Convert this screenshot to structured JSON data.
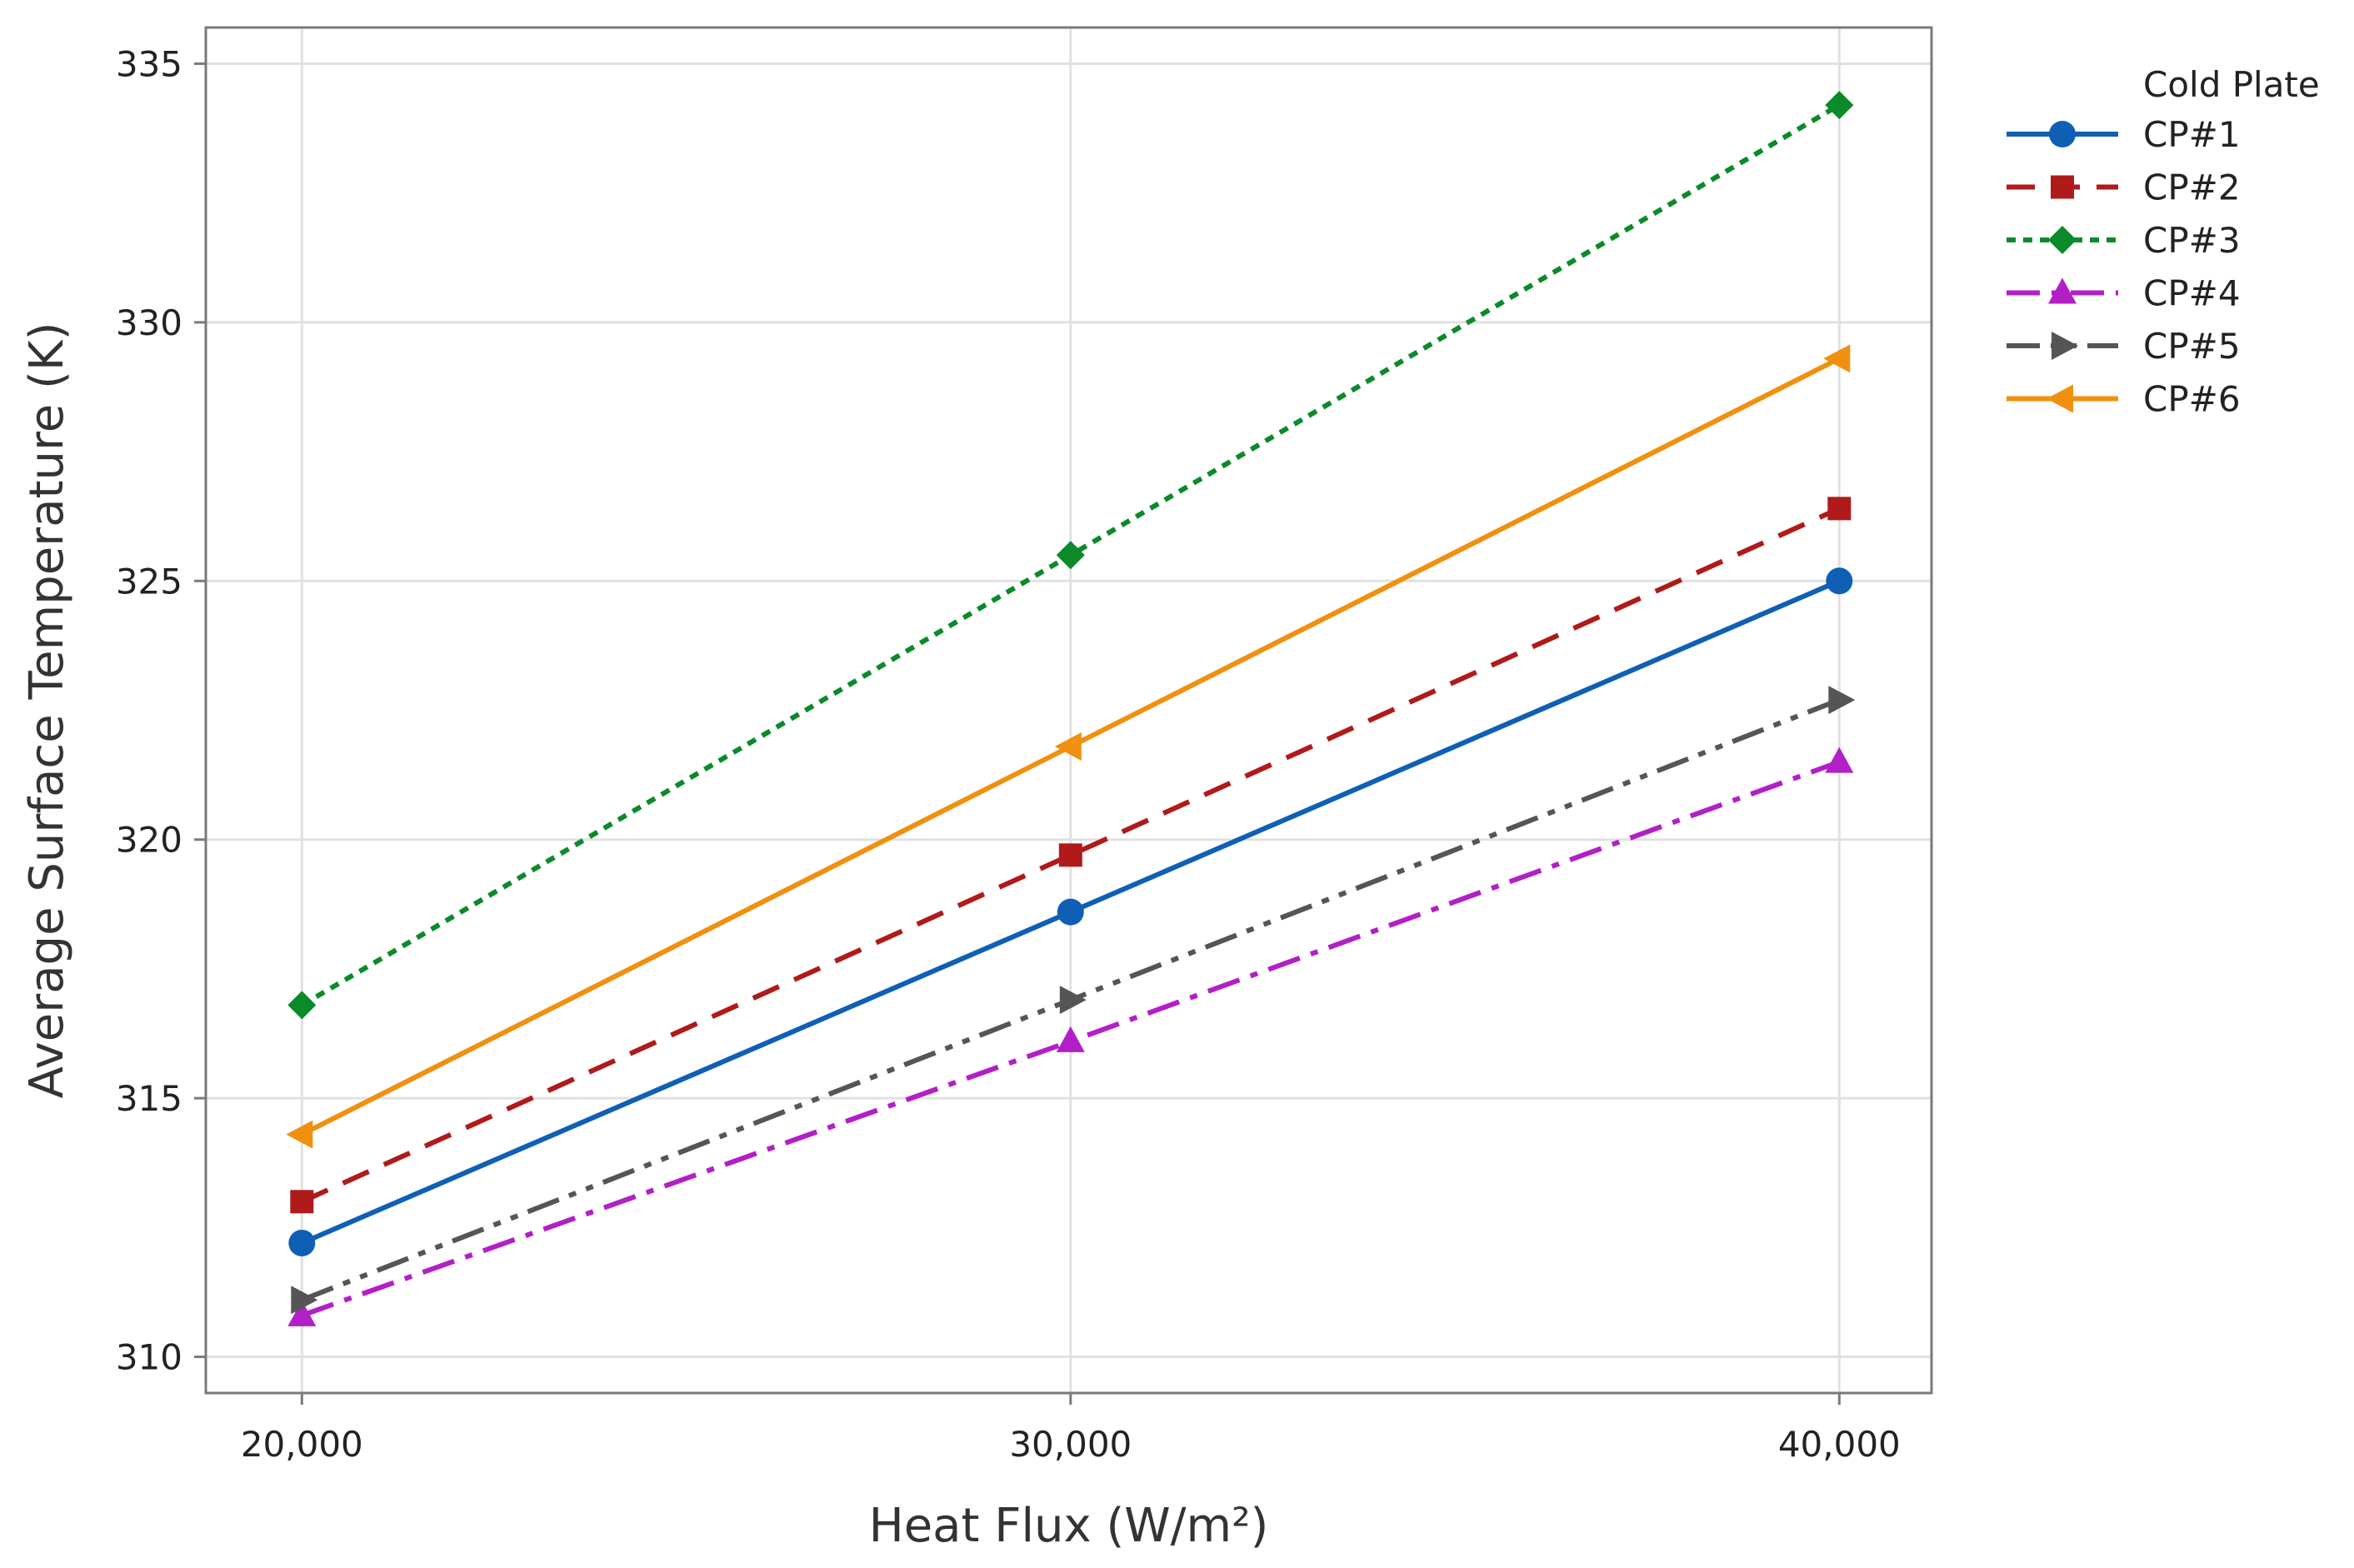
{
  "chart_data": {
    "type": "line",
    "title": "",
    "xlabel": "Heat Flux (W/m²)",
    "ylabel": "Average Surface Temperature (K)",
    "x": [
      20000,
      30000,
      40000
    ],
    "x_tick_labels": [
      "20,000",
      "30,000",
      "40,000"
    ],
    "xlim": [
      18750,
      41200
    ],
    "ylim": [
      309.3,
      335.7
    ],
    "y_ticks": [
      310,
      315,
      320,
      325,
      330,
      335
    ],
    "y_tick_labels": [
      "310",
      "315",
      "320",
      "325",
      "330",
      "335"
    ],
    "grid": true,
    "legend": {
      "title": "Cold Plate",
      "position": "right"
    },
    "series": [
      {
        "name": "CP#1",
        "values": [
          312.2,
          318.6,
          325.0
        ],
        "color": "#0f5fb5",
        "marker": "circle",
        "dash": "solid"
      },
      {
        "name": "CP#2",
        "values": [
          313.0,
          319.7,
          326.4
        ],
        "color": "#b01a1a",
        "marker": "square",
        "dash": "dashed"
      },
      {
        "name": "CP#3",
        "values": [
          316.8,
          325.5,
          334.2
        ],
        "color": "#0b8a2a",
        "marker": "diamond",
        "dash": "dotted"
      },
      {
        "name": "CP#4",
        "values": [
          310.8,
          316.1,
          321.5
        ],
        "color": "#b21fc6",
        "marker": "triangle-up",
        "dash": "dashdot"
      },
      {
        "name": "CP#5",
        "values": [
          311.1,
          316.9,
          322.7
        ],
        "color": "#555555",
        "marker": "triangle-right",
        "dash": "dashdotdot"
      },
      {
        "name": "CP#6",
        "values": [
          314.3,
          321.8,
          329.3
        ],
        "color": "#f0900f",
        "marker": "triangle-left",
        "dash": "solid"
      }
    ]
  }
}
